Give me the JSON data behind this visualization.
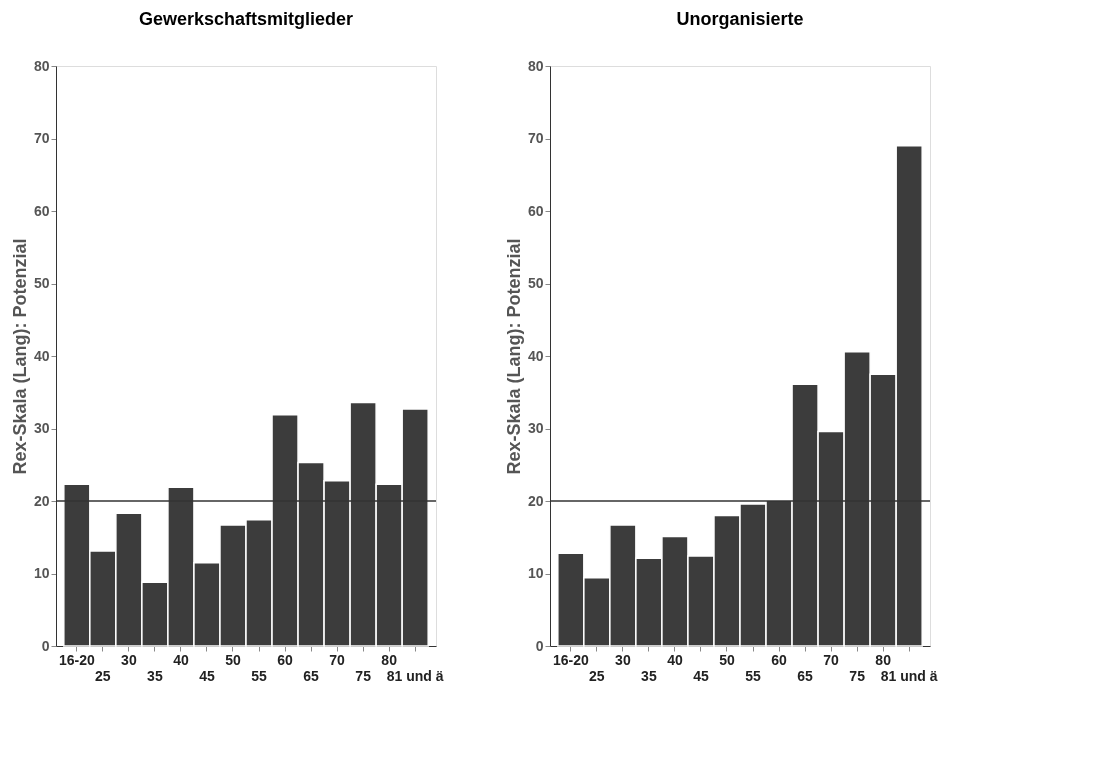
{
  "chart_data": [
    {
      "type": "bar",
      "title": "Gewerkschaftsmitglieder",
      "ylabel": "Rex-Skala (Lang): Potenzial",
      "categories": [
        "16-20",
        "25",
        "30",
        "35",
        "40",
        "45",
        "50",
        "55",
        "60",
        "65",
        "70",
        "75",
        "80",
        "81 und ä"
      ],
      "values": [
        22.3,
        13.1,
        18.3,
        8.8,
        21.9,
        11.5,
        16.7,
        17.4,
        31.9,
        25.3,
        22.8,
        33.6,
        22.3,
        32.7
      ],
      "color": "#3c3c3c",
      "ylim": [
        0,
        80
      ],
      "yticks": [
        0,
        10,
        20,
        30,
        40,
        50,
        60,
        70,
        80
      ],
      "grid": false,
      "ref_lines": [
        {
          "axis": "y",
          "value": 20,
          "color": "#333333"
        }
      ]
    },
    {
      "type": "bar",
      "title": "Unorganisierte",
      "ylabel": "Rex-Skala (Lang): Potenzial",
      "categories": [
        "16-20",
        "25",
        "30",
        "35",
        "40",
        "45",
        "50",
        "55",
        "60",
        "65",
        "70",
        "75",
        "80",
        "81 und ä"
      ],
      "values": [
        12.8,
        9.4,
        16.7,
        12.1,
        15.1,
        12.4,
        18.0,
        19.6,
        20.1,
        36.1,
        29.6,
        40.6,
        37.5,
        69.0
      ],
      "color": "#3c3c3c",
      "ylim": [
        0,
        80
      ],
      "yticks": [
        0,
        10,
        20,
        30,
        40,
        50,
        60,
        70,
        80
      ],
      "grid": false,
      "ref_lines": [
        {
          "axis": "y",
          "value": 20,
          "color": "#333333"
        }
      ]
    }
  ]
}
